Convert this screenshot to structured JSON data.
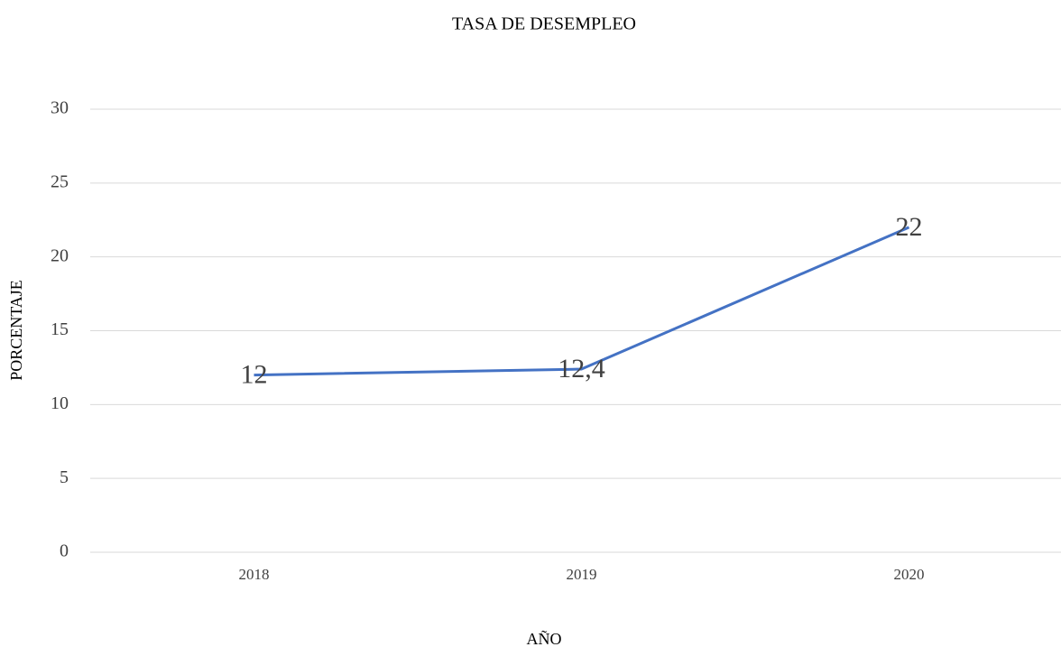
{
  "chart_data": {
    "type": "line",
    "title": "TASA DE DESEMPLEO",
    "x_label": "AÑO",
    "y_label": "PORCENTAJE",
    "categories": [
      "2018",
      "2019",
      "2020"
    ],
    "series": [
      {
        "name": "TASA DE DESEMPLEO",
        "color": "#4472c4",
        "values": [
          12,
          12.4,
          22
        ],
        "value_labels": [
          "12",
          "12,4",
          "22"
        ]
      }
    ],
    "ylim": [
      0,
      30
    ],
    "yticks": [
      0,
      5,
      10,
      15,
      20,
      25,
      30
    ],
    "grid": true
  }
}
